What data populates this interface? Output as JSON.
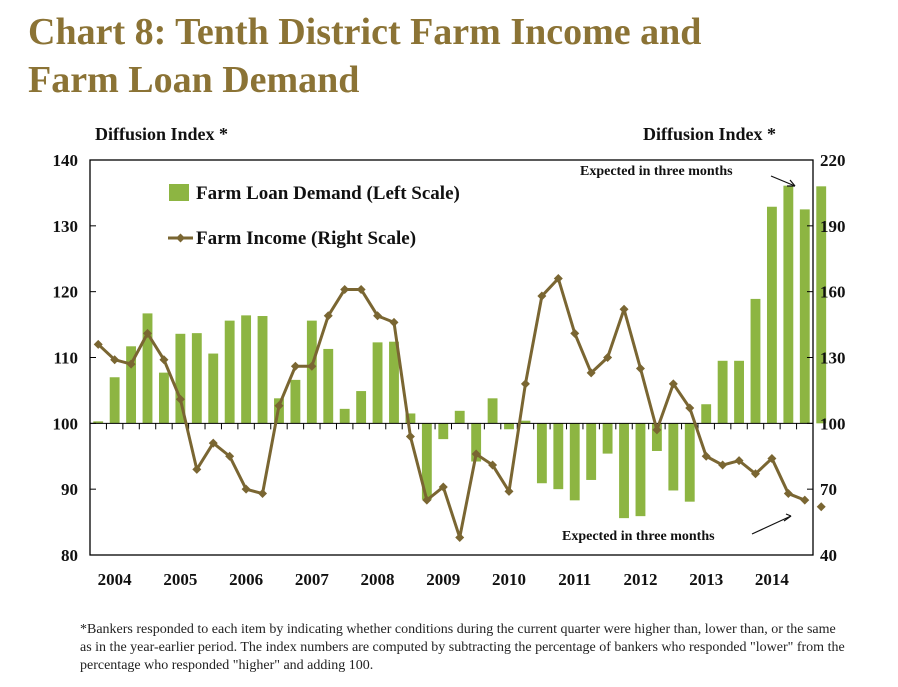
{
  "page": {
    "title_lines": [
      "Chart 8: Tenth District Farm Income and",
      "Farm Loan Demand"
    ],
    "footnote": "*Bankers responded to each item by indicating whether conditions during the current quarter were higher than, lower than, or the same as in the year-earlier period.  The index numbers are computed by subtracting the percentage of bankers who responded \"lower\" from the percentage who responded \"higher\" and adding 100."
  },
  "colors": {
    "title": "#8b7335",
    "bar": "#8db542",
    "line": "#7a6632",
    "axis": "#000000"
  },
  "chart_data": {
    "type": "bar",
    "ylabel_left": "Diffusion Index *",
    "ylabel_right": "Diffusion Index *",
    "ylim_left": [
      80,
      140
    ],
    "yticks_left": [
      80,
      90,
      100,
      110,
      120,
      130,
      140
    ],
    "ylim_right": [
      40,
      220
    ],
    "yticks_right": [
      40,
      70,
      100,
      130,
      160,
      190,
      220
    ],
    "xtick_labels": [
      "2004",
      "2005",
      "2006",
      "2007",
      "2008",
      "2009",
      "2010",
      "2011",
      "2012",
      "2013",
      "2014"
    ],
    "quarters_per_year": 4,
    "baseline_left": 100,
    "legend": {
      "placement": "top-left"
    },
    "series": [
      {
        "name": "Farm Loan Demand (Left Scale)",
        "kind": "bar",
        "axis": "left",
        "values": [
          100.3,
          107,
          111.7,
          116.7,
          107.7,
          113.6,
          113.7,
          110.6,
          115.6,
          116.4,
          116.3,
          103.8,
          106.6,
          115.6,
          111.3,
          102.2,
          104.9,
          112.3,
          112.4,
          101.5,
          88.4,
          97.6,
          101.9,
          94.2,
          103.8,
          99.1,
          100.4,
          90.9,
          90,
          88.3,
          91.4,
          95.4,
          85.6,
          85.9,
          95.8,
          89.8,
          88.1,
          102.9,
          109.5,
          109.5,
          118.9,
          132.9,
          136.1,
          132.5,
          136
        ]
      },
      {
        "name": "Farm Income (Right Scale)",
        "kind": "line",
        "axis": "right",
        "values": [
          136,
          129,
          127,
          141,
          129,
          111,
          79,
          91,
          85,
          70,
          68,
          108,
          126,
          126,
          149,
          161,
          161,
          149,
          146,
          94,
          65,
          71,
          48,
          86,
          81,
          69,
          118,
          158,
          166,
          141,
          123,
          130,
          152,
          125,
          97,
          118,
          107,
          85,
          81,
          83,
          77,
          84,
          68,
          65,
          62
        ]
      }
    ],
    "annotations": [
      "Expected in three months",
      "Expected in three months"
    ]
  }
}
